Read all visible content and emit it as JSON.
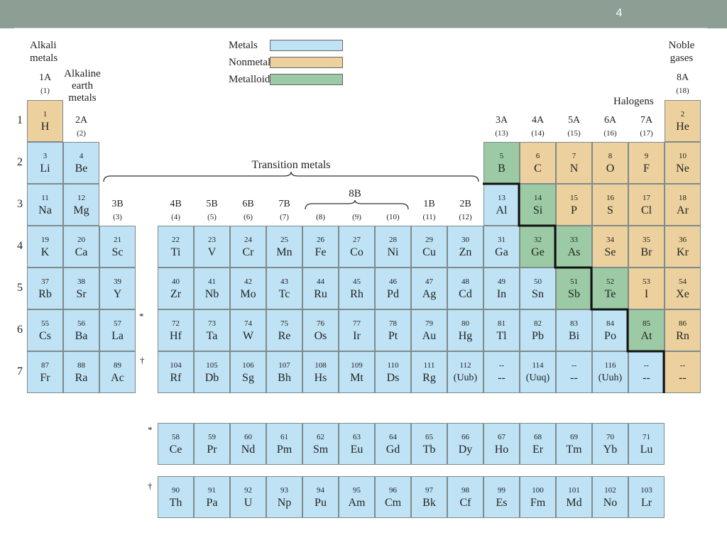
{
  "page_number": "4",
  "legend": [
    {
      "label": "Metals",
      "color": "#bfe3f5"
    },
    {
      "label": "Nonmetals",
      "color": "#ecd19e"
    },
    {
      "label": "Metalloids",
      "color": "#9bcaa4"
    }
  ],
  "family_labels": {
    "alkali": "Alkali\nmetals",
    "alkaline_earth": "Alkaline\nearth\nmetals",
    "noble": "Noble\ngases",
    "halogens": "Halogens",
    "transition": "Transition metals",
    "group_8b": "8B"
  },
  "groups": [
    {
      "a": "1A",
      "b": "(1)"
    },
    {
      "a": "2A",
      "b": "(2)"
    },
    {
      "a": "3B",
      "b": "(3)"
    },
    {
      "a": "4B",
      "b": "(4)"
    },
    {
      "a": "5B",
      "b": "(5)"
    },
    {
      "a": "6B",
      "b": "(6)"
    },
    {
      "a": "7B",
      "b": "(7)"
    },
    {
      "a": "",
      "b": "(8)"
    },
    {
      "a": "",
      "b": "(9)"
    },
    {
      "a": "",
      "b": "(10)"
    },
    {
      "a": "1B",
      "b": "(11)"
    },
    {
      "a": "2B",
      "b": "(12)"
    },
    {
      "a": "3A",
      "b": "(13)"
    },
    {
      "a": "4A",
      "b": "(14)"
    },
    {
      "a": "5A",
      "b": "(15)"
    },
    {
      "a": "6A",
      "b": "(16)"
    },
    {
      "a": "7A",
      "b": "(17)"
    },
    {
      "a": "8A",
      "b": "(18)"
    }
  ],
  "periods": [
    "1",
    "2",
    "3",
    "4",
    "5",
    "6",
    "7"
  ],
  "series_marks": {
    "lanthanide": "*",
    "actinide": "†"
  },
  "elements": [
    {
      "n": "1",
      "s": "H",
      "p": 1,
      "g": 1,
      "t": "nonmetal"
    },
    {
      "n": "2",
      "s": "He",
      "p": 1,
      "g": 18,
      "t": "nonmetal"
    },
    {
      "n": "3",
      "s": "Li",
      "p": 2,
      "g": 1,
      "t": "metal"
    },
    {
      "n": "4",
      "s": "Be",
      "p": 2,
      "g": 2,
      "t": "metal"
    },
    {
      "n": "5",
      "s": "B",
      "p": 2,
      "g": 13,
      "t": "metalloid"
    },
    {
      "n": "6",
      "s": "C",
      "p": 2,
      "g": 14,
      "t": "nonmetal"
    },
    {
      "n": "7",
      "s": "N",
      "p": 2,
      "g": 15,
      "t": "nonmetal"
    },
    {
      "n": "8",
      "s": "O",
      "p": 2,
      "g": 16,
      "t": "nonmetal"
    },
    {
      "n": "9",
      "s": "F",
      "p": 2,
      "g": 17,
      "t": "nonmetal"
    },
    {
      "n": "10",
      "s": "Ne",
      "p": 2,
      "g": 18,
      "t": "nonmetal"
    },
    {
      "n": "11",
      "s": "Na",
      "p": 3,
      "g": 1,
      "t": "metal"
    },
    {
      "n": "12",
      "s": "Mg",
      "p": 3,
      "g": 2,
      "t": "metal"
    },
    {
      "n": "13",
      "s": "Al",
      "p": 3,
      "g": 13,
      "t": "metal"
    },
    {
      "n": "14",
      "s": "Si",
      "p": 3,
      "g": 14,
      "t": "metalloid"
    },
    {
      "n": "15",
      "s": "P",
      "p": 3,
      "g": 15,
      "t": "nonmetal"
    },
    {
      "n": "16",
      "s": "S",
      "p": 3,
      "g": 16,
      "t": "nonmetal"
    },
    {
      "n": "17",
      "s": "Cl",
      "p": 3,
      "g": 17,
      "t": "nonmetal"
    },
    {
      "n": "18",
      "s": "Ar",
      "p": 3,
      "g": 18,
      "t": "nonmetal"
    },
    {
      "n": "19",
      "s": "K",
      "p": 4,
      "g": 1,
      "t": "metal"
    },
    {
      "n": "20",
      "s": "Ca",
      "p": 4,
      "g": 2,
      "t": "metal"
    },
    {
      "n": "21",
      "s": "Sc",
      "p": 4,
      "g": 3,
      "t": "metal"
    },
    {
      "n": "22",
      "s": "Ti",
      "p": 4,
      "g": 4,
      "t": "metal"
    },
    {
      "n": "23",
      "s": "V",
      "p": 4,
      "g": 5,
      "t": "metal"
    },
    {
      "n": "24",
      "s": "Cr",
      "p": 4,
      "g": 6,
      "t": "metal"
    },
    {
      "n": "25",
      "s": "Mn",
      "p": 4,
      "g": 7,
      "t": "metal"
    },
    {
      "n": "26",
      "s": "Fe",
      "p": 4,
      "g": 8,
      "t": "metal"
    },
    {
      "n": "27",
      "s": "Co",
      "p": 4,
      "g": 9,
      "t": "metal"
    },
    {
      "n": "28",
      "s": "Ni",
      "p": 4,
      "g": 10,
      "t": "metal"
    },
    {
      "n": "29",
      "s": "Cu",
      "p": 4,
      "g": 11,
      "t": "metal"
    },
    {
      "n": "30",
      "s": "Zn",
      "p": 4,
      "g": 12,
      "t": "metal"
    },
    {
      "n": "31",
      "s": "Ga",
      "p": 4,
      "g": 13,
      "t": "metal"
    },
    {
      "n": "32",
      "s": "Ge",
      "p": 4,
      "g": 14,
      "t": "metalloid"
    },
    {
      "n": "33",
      "s": "As",
      "p": 4,
      "g": 15,
      "t": "metalloid"
    },
    {
      "n": "34",
      "s": "Se",
      "p": 4,
      "g": 16,
      "t": "nonmetal"
    },
    {
      "n": "35",
      "s": "Br",
      "p": 4,
      "g": 17,
      "t": "nonmetal"
    },
    {
      "n": "36",
      "s": "Kr",
      "p": 4,
      "g": 18,
      "t": "nonmetal"
    },
    {
      "n": "37",
      "s": "Rb",
      "p": 5,
      "g": 1,
      "t": "metal"
    },
    {
      "n": "38",
      "s": "Sr",
      "p": 5,
      "g": 2,
      "t": "metal"
    },
    {
      "n": "39",
      "s": "Y",
      "p": 5,
      "g": 3,
      "t": "metal"
    },
    {
      "n": "40",
      "s": "Zr",
      "p": 5,
      "g": 4,
      "t": "metal"
    },
    {
      "n": "41",
      "s": "Nb",
      "p": 5,
      "g": 5,
      "t": "metal"
    },
    {
      "n": "42",
      "s": "Mo",
      "p": 5,
      "g": 6,
      "t": "metal"
    },
    {
      "n": "43",
      "s": "Tc",
      "p": 5,
      "g": 7,
      "t": "metal"
    },
    {
      "n": "44",
      "s": "Ru",
      "p": 5,
      "g": 8,
      "t": "metal"
    },
    {
      "n": "45",
      "s": "Rh",
      "p": 5,
      "g": 9,
      "t": "metal"
    },
    {
      "n": "46",
      "s": "Pd",
      "p": 5,
      "g": 10,
      "t": "metal"
    },
    {
      "n": "47",
      "s": "Ag",
      "p": 5,
      "g": 11,
      "t": "metal"
    },
    {
      "n": "48",
      "s": "Cd",
      "p": 5,
      "g": 12,
      "t": "metal"
    },
    {
      "n": "49",
      "s": "In",
      "p": 5,
      "g": 13,
      "t": "metal"
    },
    {
      "n": "50",
      "s": "Sn",
      "p": 5,
      "g": 14,
      "t": "metal"
    },
    {
      "n": "51",
      "s": "Sb",
      "p": 5,
      "g": 15,
      "t": "metalloid"
    },
    {
      "n": "52",
      "s": "Te",
      "p": 5,
      "g": 16,
      "t": "metalloid"
    },
    {
      "n": "53",
      "s": "I",
      "p": 5,
      "g": 17,
      "t": "nonmetal"
    },
    {
      "n": "54",
      "s": "Xe",
      "p": 5,
      "g": 18,
      "t": "nonmetal"
    },
    {
      "n": "55",
      "s": "Cs",
      "p": 6,
      "g": 1,
      "t": "metal"
    },
    {
      "n": "56",
      "s": "Ba",
      "p": 6,
      "g": 2,
      "t": "metal"
    },
    {
      "n": "57",
      "s": "La",
      "p": 6,
      "g": 3,
      "t": "metal"
    },
    {
      "n": "72",
      "s": "Hf",
      "p": 6,
      "g": 4,
      "t": "metal"
    },
    {
      "n": "73",
      "s": "Ta",
      "p": 6,
      "g": 5,
      "t": "metal"
    },
    {
      "n": "74",
      "s": "W",
      "p": 6,
      "g": 6,
      "t": "metal"
    },
    {
      "n": "75",
      "s": "Re",
      "p": 6,
      "g": 7,
      "t": "metal"
    },
    {
      "n": "76",
      "s": "Os",
      "p": 6,
      "g": 8,
      "t": "metal"
    },
    {
      "n": "77",
      "s": "Ir",
      "p": 6,
      "g": 9,
      "t": "metal"
    },
    {
      "n": "78",
      "s": "Pt",
      "p": 6,
      "g": 10,
      "t": "metal"
    },
    {
      "n": "79",
      "s": "Au",
      "p": 6,
      "g": 11,
      "t": "metal"
    },
    {
      "n": "80",
      "s": "Hg",
      "p": 6,
      "g": 12,
      "t": "metal"
    },
    {
      "n": "81",
      "s": "Tl",
      "p": 6,
      "g": 13,
      "t": "metal"
    },
    {
      "n": "82",
      "s": "Pb",
      "p": 6,
      "g": 14,
      "t": "metal"
    },
    {
      "n": "83",
      "s": "Bi",
      "p": 6,
      "g": 15,
      "t": "metal"
    },
    {
      "n": "84",
      "s": "Po",
      "p": 6,
      "g": 16,
      "t": "metal"
    },
    {
      "n": "85",
      "s": "At",
      "p": 6,
      "g": 17,
      "t": "metalloid"
    },
    {
      "n": "86",
      "s": "Rn",
      "p": 6,
      "g": 18,
      "t": "nonmetal"
    },
    {
      "n": "87",
      "s": "Fr",
      "p": 7,
      "g": 1,
      "t": "metal"
    },
    {
      "n": "88",
      "s": "Ra",
      "p": 7,
      "g": 2,
      "t": "metal"
    },
    {
      "n": "89",
      "s": "Ac",
      "p": 7,
      "g": 3,
      "t": "metal"
    },
    {
      "n": "104",
      "s": "Rf",
      "p": 7,
      "g": 4,
      "t": "metal"
    },
    {
      "n": "105",
      "s": "Db",
      "p": 7,
      "g": 5,
      "t": "metal"
    },
    {
      "n": "106",
      "s": "Sg",
      "p": 7,
      "g": 6,
      "t": "metal"
    },
    {
      "n": "107",
      "s": "Bh",
      "p": 7,
      "g": 7,
      "t": "metal"
    },
    {
      "n": "108",
      "s": "Hs",
      "p": 7,
      "g": 8,
      "t": "metal"
    },
    {
      "n": "109",
      "s": "Mt",
      "p": 7,
      "g": 9,
      "t": "metal"
    },
    {
      "n": "110",
      "s": "Ds",
      "p": 7,
      "g": 10,
      "t": "metal"
    },
    {
      "n": "111",
      "s": "Rg",
      "p": 7,
      "g": 11,
      "t": "metal"
    },
    {
      "n": "112",
      "s": "(Uub)",
      "p": 7,
      "g": 12,
      "t": "metal"
    },
    {
      "n": "--",
      "s": "--",
      "p": 7,
      "g": 13,
      "t": "metal"
    },
    {
      "n": "114",
      "s": "(Uuq)",
      "p": 7,
      "g": 14,
      "t": "metal"
    },
    {
      "n": "--",
      "s": "--",
      "p": 7,
      "g": 15,
      "t": "metal"
    },
    {
      "n": "116",
      "s": "(Uuh)",
      "p": 7,
      "g": 16,
      "t": "metal"
    },
    {
      "n": "--",
      "s": "--",
      "p": 7,
      "g": 17,
      "t": "metal"
    },
    {
      "n": "--",
      "s": "--",
      "p": 7,
      "g": 18,
      "t": "nonmetal"
    }
  ],
  "lanthanides": [
    {
      "n": "58",
      "s": "Ce"
    },
    {
      "n": "59",
      "s": "Pr"
    },
    {
      "n": "60",
      "s": "Nd"
    },
    {
      "n": "61",
      "s": "Pm"
    },
    {
      "n": "62",
      "s": "Sm"
    },
    {
      "n": "63",
      "s": "Eu"
    },
    {
      "n": "64",
      "s": "Gd"
    },
    {
      "n": "65",
      "s": "Tb"
    },
    {
      "n": "66",
      "s": "Dy"
    },
    {
      "n": "67",
      "s": "Ho"
    },
    {
      "n": "68",
      "s": "Er"
    },
    {
      "n": "69",
      "s": "Tm"
    },
    {
      "n": "70",
      "s": "Yb"
    },
    {
      "n": "71",
      "s": "Lu"
    }
  ],
  "actinides": [
    {
      "n": "90",
      "s": "Th"
    },
    {
      "n": "91",
      "s": "Pa"
    },
    {
      "n": "92",
      "s": "U"
    },
    {
      "n": "93",
      "s": "Np"
    },
    {
      "n": "94",
      "s": "Pu"
    },
    {
      "n": "95",
      "s": "Am"
    },
    {
      "n": "96",
      "s": "Cm"
    },
    {
      "n": "97",
      "s": "Bk"
    },
    {
      "n": "98",
      "s": "Cf"
    },
    {
      "n": "99",
      "s": "Es"
    },
    {
      "n": "100",
      "s": "Fm"
    },
    {
      "n": "101",
      "s": "Md"
    },
    {
      "n": "102",
      "s": "No"
    },
    {
      "n": "103",
      "s": "Lr"
    }
  ]
}
